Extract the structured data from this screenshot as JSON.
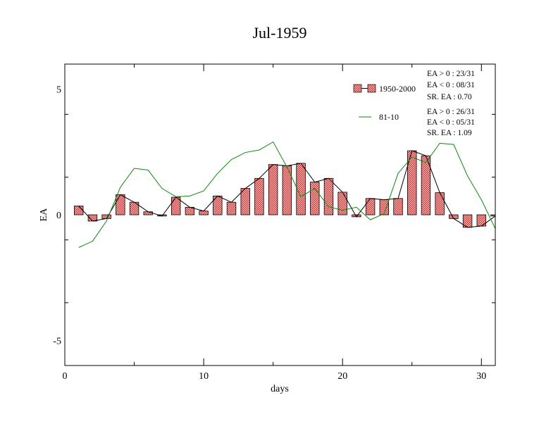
{
  "chart_data": {
    "type": "bar",
    "title": "Jul-1959",
    "xlabel": "days",
    "ylabel": "EA",
    "xlim": [
      0,
      31
    ],
    "ylim": [
      -6,
      6
    ],
    "xticks": [
      0,
      10,
      20,
      30
    ],
    "yticks": [
      -5,
      0,
      5
    ],
    "grid": false,
    "legend_position": "top-right",
    "series": [
      {
        "name": "1950-2000",
        "kind": "bar+line",
        "color": "#cc3333",
        "x": [
          1,
          2,
          3,
          4,
          5,
          6,
          7,
          8,
          9,
          10,
          11,
          12,
          13,
          14,
          15,
          16,
          17,
          18,
          19,
          20,
          21,
          22,
          23,
          24,
          25,
          26,
          27,
          28,
          29,
          30,
          31
        ],
        "values": [
          0.35,
          -0.25,
          -0.15,
          0.8,
          0.5,
          0.12,
          -0.05,
          0.7,
          0.3,
          0.15,
          0.75,
          0.5,
          1.05,
          1.45,
          2.0,
          1.95,
          2.05,
          1.3,
          1.45,
          0.9,
          -0.08,
          0.65,
          0.6,
          0.65,
          2.55,
          2.35,
          0.88,
          -0.15,
          -0.5,
          -0.45,
          -0.05
        ]
      },
      {
        "name": "81-10",
        "kind": "line",
        "color": "#118811",
        "x": [
          1,
          2,
          3,
          4,
          5,
          6,
          7,
          8,
          9,
          10,
          11,
          12,
          13,
          14,
          15,
          16,
          17,
          18,
          19,
          20,
          21,
          22,
          23,
          24,
          25,
          26,
          27,
          28,
          29,
          30,
          31
        ],
        "values": [
          -1.3,
          -1.05,
          -0.25,
          1.1,
          1.85,
          1.78,
          1.05,
          0.72,
          0.75,
          0.95,
          1.65,
          2.2,
          2.48,
          2.58,
          2.9,
          1.9,
          0.72,
          1.05,
          0.32,
          0.18,
          0.3,
          -0.2,
          0.05,
          1.65,
          2.3,
          2.08,
          2.85,
          2.8,
          1.55,
          0.6,
          -0.55
        ]
      }
    ],
    "stats": [
      {
        "group": "1950-2000",
        "lines": [
          "EA > 0 : 23/31",
          "EA < 0 : 08/31",
          "SR. EA :  0.70"
        ]
      },
      {
        "group": "81-10",
        "lines": [
          "EA > 0 : 26/31",
          "EA < 0 : 05/31",
          "SR. EA :  1.09"
        ]
      }
    ]
  }
}
